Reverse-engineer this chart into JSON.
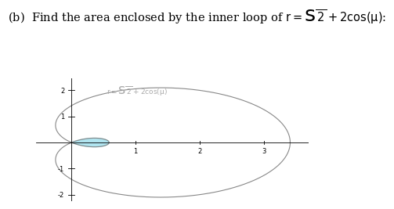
{
  "title": "(b)  Find the area enclosed by the inner loop of $r = \\sqrt{2} + 2\\cos(\\theta)$:",
  "curve_label": "$r = \\sqrt{2} + 2\\cos(\\theta)$",
  "xlim": [
    -0.55,
    3.7
  ],
  "ylim": [
    -2.25,
    2.45
  ],
  "xticks": [
    1,
    2,
    3
  ],
  "yticks": [
    -2,
    -1,
    1,
    2
  ],
  "curve_color": "#888888",
  "fill_color": "#88d8e8",
  "fill_alpha": 0.65,
  "background_color": "#ffffff",
  "title_fontsize": 10.5,
  "label_fontsize": 6.5,
  "label_color": "#aaaaaa"
}
